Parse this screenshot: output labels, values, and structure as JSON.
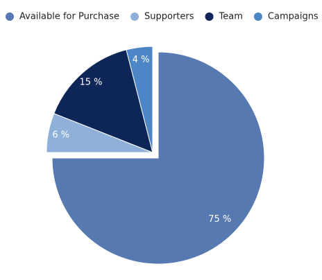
{
  "chart_data": {
    "type": "pie",
    "categories": [
      "Available for Purchase",
      "Supporters",
      "Team",
      "Campaigns"
    ],
    "values": [
      75,
      6,
      15,
      4
    ],
    "value_labels": [
      "75 %",
      "6 %",
      "15 %",
      "4 %"
    ],
    "colors": [
      "#5579b0",
      "#8fb1d9",
      "#0d2657",
      "#4c86c6"
    ],
    "legend": "top"
  }
}
